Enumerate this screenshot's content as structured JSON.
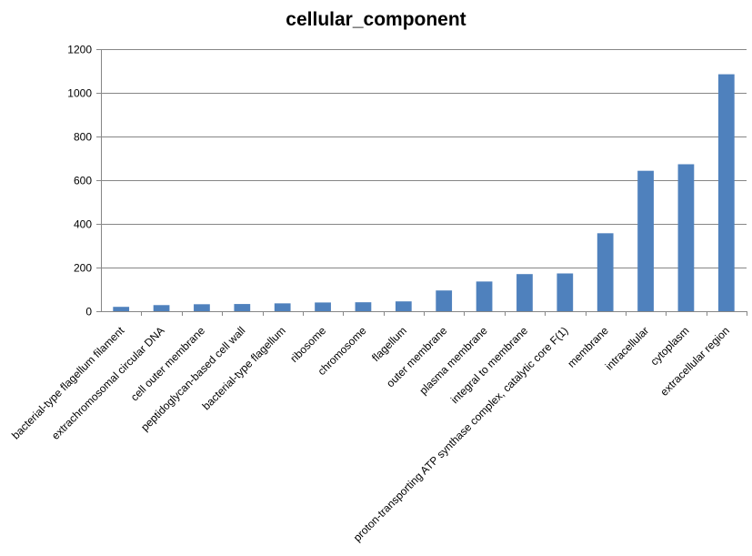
{
  "chart_data": {
    "type": "bar",
    "title": "cellular_component",
    "xlabel": "",
    "ylabel": "",
    "ylim": [
      0,
      1200
    ],
    "yticks": [
      0,
      200,
      400,
      600,
      800,
      1000,
      1200
    ],
    "grid": true,
    "legend": "none",
    "bar_color": "#4f81bd",
    "categories": [
      "bacterial-type flagellum filament",
      "extrachromosomal circular DNA",
      "cell outer membrane",
      "peptidoglycan-based cell wall",
      "bacterial-type flagellum",
      "ribosome",
      "chromosome",
      "flagellum",
      "outer membrane",
      "plasma membrane",
      "integral to membrane",
      "proton-transporting ATP synthase complex, catalytic core F(1)",
      "membrane",
      "intracellular",
      "cytoplasm",
      "extracellular region"
    ],
    "values": [
      20,
      28,
      32,
      33,
      36,
      40,
      41,
      45,
      95,
      136,
      170,
      173,
      357,
      643,
      673,
      1085
    ]
  }
}
